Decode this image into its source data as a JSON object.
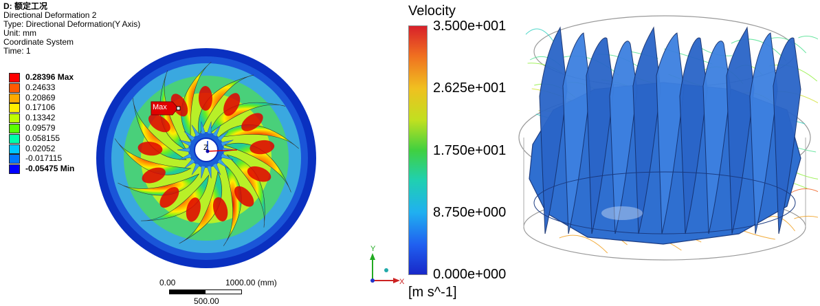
{
  "left_panel": {
    "header": {
      "title": "D: 额定工况",
      "result_name": "Directional Deformation 2",
      "type": "Type: Directional Deformation(Y Axis)",
      "unit": "Unit: mm",
      "coordinate_system": "Coordinate System",
      "time": "Time: 1"
    },
    "legend": [
      {
        "label": "0.28396 Max",
        "color": "#ff0000",
        "bold": true
      },
      {
        "label": "0.24633",
        "color": "#ff5a00",
        "bold": false
      },
      {
        "label": "0.20869",
        "color": "#ffaa00",
        "bold": false
      },
      {
        "label": "0.17106",
        "color": "#ffee00",
        "bold": false
      },
      {
        "label": "0.13342",
        "color": "#bfff00",
        "bold": false
      },
      {
        "label": "0.09579",
        "color": "#59ff00",
        "bold": false
      },
      {
        "label": "0.058155",
        "color": "#00ffaa",
        "bold": false
      },
      {
        "label": "0.02052",
        "color": "#00c8ff",
        "bold": false
      },
      {
        "label": "-0.017115",
        "color": "#0078ff",
        "bold": false
      },
      {
        "label": "-0.05475 Min",
        "color": "#0000ff",
        "bold": true
      }
    ],
    "max_probe_label": "Max",
    "axis_label_z": "Z",
    "scale_bar": {
      "start": "0.00",
      "end": "1000.00 (mm)",
      "mid": "500.00"
    }
  },
  "right_panel": {
    "colorbar": {
      "title": "Velocity",
      "ticks": [
        "3.500e+001",
        "2.625e+001",
        "1.750e+001",
        "8.750e+000",
        "0.000e+000"
      ],
      "unit": "[m s^-1]"
    },
    "triad": {
      "y": "Y",
      "x": "X"
    }
  },
  "colors": {
    "contour_blue": "#0a33c8",
    "runner_blue": "#2f6fd0",
    "max_tag": "#e00000"
  }
}
